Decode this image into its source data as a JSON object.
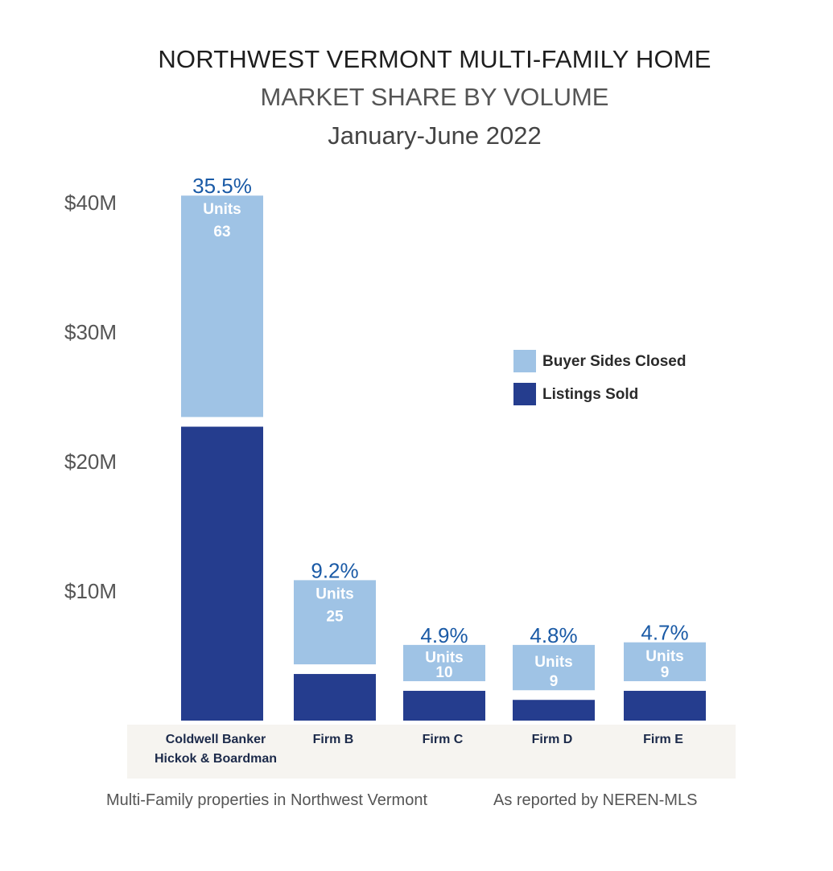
{
  "title_line1": "NORTHWEST VERMONT MULTI-FAMILY HOME",
  "title_line2": "MARKET SHARE BY VOLUME",
  "title_line3": "January-June 2022",
  "footer_left": "Multi-Family properties in Northwest Vermont",
  "footer_right": "As reported by NEREN-MLS",
  "colors": {
    "buyer": "#9fc3e5",
    "listings": "#253d8e",
    "category_band": "#f6f4f0",
    "percent_text": "#1a5aa6"
  },
  "chart_data": {
    "type": "bar",
    "stacked": true,
    "title": "NORTHWEST VERMONT MULTI-FAMILY HOME MARKET SHARE BY VOLUME",
    "subtitle": "January-June 2022",
    "categories": [
      [
        "Coldwell Banker",
        "Hickok & Boardman"
      ],
      [
        "Firm B"
      ],
      [
        "Firm C"
      ],
      [
        "Firm D"
      ],
      [
        "Firm E"
      ]
    ],
    "series": [
      {
        "name": "Listings Sold",
        "values": [
          22.7,
          3.6,
          2.3,
          1.6,
          2.3
        ]
      },
      {
        "name": "Buyer Sides Closed",
        "values": [
          17.1,
          6.5,
          2.8,
          3.5,
          3.0
        ]
      }
    ],
    "market_share_labels": [
      "35.5%",
      "9.2%",
      "4.9%",
      "4.8%",
      "4.7%"
    ],
    "units_word": "Units",
    "units": [
      "63",
      "25",
      "10",
      "9",
      "9"
    ],
    "yticks": [
      "$10M",
      "$20M",
      "$30M",
      "$40M"
    ],
    "ytick_values": [
      10,
      20,
      30,
      40
    ],
    "ylim": [
      0,
      40
    ],
    "legend": [
      "Buyer Sides Closed",
      "Listings Sold"
    ],
    "legend_position": "right",
    "grid": false
  }
}
